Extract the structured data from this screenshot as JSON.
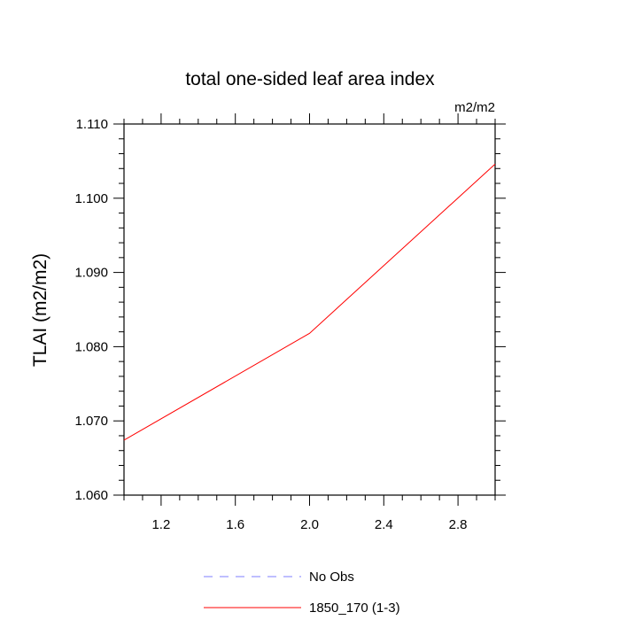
{
  "chart_data": {
    "type": "line",
    "title": "total one-sided leaf area index",
    "units_label": "m2/m2",
    "ylabel": "TLAI  (m2/m2)",
    "xlabel": "",
    "xlim": [
      1.0,
      3.0
    ],
    "ylim": [
      1.06,
      1.11
    ],
    "x_ticks": [
      "1.2",
      "1.6",
      "2.0",
      "2.4",
      "2.8"
    ],
    "x_tick_values": [
      1.2,
      1.6,
      2.0,
      2.4,
      2.8
    ],
    "y_ticks": [
      "1.060",
      "1.070",
      "1.080",
      "1.090",
      "1.100",
      "1.110"
    ],
    "y_tick_values": [
      1.06,
      1.07,
      1.08,
      1.09,
      1.1,
      1.11
    ],
    "grid": false,
    "legend_position": "bottom",
    "series": [
      {
        "name": "No Obs",
        "color": "#7f7fff",
        "dash": "dashed",
        "x": [],
        "y": []
      },
      {
        "name": "1850_170 (1-3)",
        "color": "#ff0000",
        "dash": "solid",
        "x": [
          1.0,
          2.0,
          3.0
        ],
        "y": [
          1.0674,
          1.0818,
          1.1046
        ]
      }
    ]
  }
}
